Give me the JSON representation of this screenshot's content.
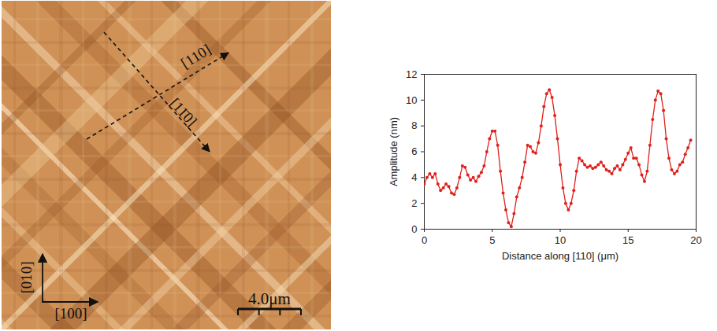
{
  "chart_data": [
    {
      "type": "image",
      "annotations": [
        "[110]",
        "[11̄0]",
        "[010]",
        "[100]"
      ],
      "scale_bar": "4.0μm"
    },
    {
      "type": "line",
      "x_label": "Distance along [110] (μm)",
      "y_label": "Amplitude (nm)",
      "x": [
        0,
        0.2,
        0.4,
        0.6,
        0.8,
        1.0,
        1.2,
        1.4,
        1.6,
        1.8,
        2.0,
        2.2,
        2.4,
        2.6,
        2.8,
        3.0,
        3.2,
        3.4,
        3.6,
        3.8,
        4.0,
        4.2,
        4.4,
        4.6,
        4.8,
        5.0,
        5.2,
        5.4,
        5.6,
        5.8,
        6.0,
        6.2,
        6.4,
        6.6,
        6.8,
        7.0,
        7.2,
        7.4,
        7.6,
        7.8,
        8.0,
        8.2,
        8.4,
        8.6,
        8.8,
        9.0,
        9.2,
        9.4,
        9.6,
        9.8,
        10.0,
        10.2,
        10.4,
        10.6,
        10.8,
        11.0,
        11.2,
        11.4,
        11.6,
        11.8,
        12.0,
        12.2,
        12.4,
        12.6,
        12.8,
        13.0,
        13.2,
        13.4,
        13.6,
        13.8,
        14.0,
        14.2,
        14.4,
        14.6,
        14.8,
        15.0,
        15.2,
        15.4,
        15.6,
        15.8,
        16.0,
        16.2,
        16.4,
        16.6,
        16.8,
        17.0,
        17.2,
        17.4,
        17.6,
        17.8,
        18.0,
        18.2,
        18.4,
        18.6,
        18.8,
        19.0,
        19.2,
        19.4,
        19.6
      ],
      "values": [
        3.5,
        4.0,
        4.3,
        4.0,
        4.3,
        3.5,
        3.0,
        3.2,
        3.5,
        3.3,
        2.8,
        2.7,
        3.2,
        4.0,
        4.9,
        4.8,
        4.2,
        3.8,
        4.0,
        3.7,
        4.1,
        4.4,
        4.9,
        6.0,
        7.0,
        7.6,
        7.6,
        6.5,
        4.5,
        2.8,
        1.5,
        0.5,
        0.2,
        1.2,
        2.5,
        3.2,
        4.0,
        5.2,
        6.5,
        6.4,
        6.0,
        5.9,
        6.7,
        8.0,
        9.5,
        10.5,
        10.8,
        10.2,
        8.8,
        7.0,
        5.0,
        3.2,
        2.0,
        1.5,
        2.0,
        3.0,
        4.5,
        5.5,
        5.3,
        5.0,
        4.8,
        4.9,
        4.7,
        4.8,
        5.0,
        5.2,
        4.9,
        4.6,
        4.5,
        4.3,
        4.7,
        4.9,
        4.6,
        5.0,
        5.4,
        5.9,
        6.3,
        5.5,
        5.5,
        5.0,
        4.2,
        3.7,
        4.5,
        6.5,
        8.5,
        10.0,
        10.7,
        10.5,
        9.2,
        7.0,
        5.5,
        4.6,
        4.3,
        4.5,
        5.0,
        5.2,
        5.8,
        6.3,
        6.9
      ],
      "color": "#e0201b",
      "marker": "circle",
      "line_style": "solid",
      "xlim": [
        0,
        20
      ],
      "ylim": [
        0,
        12
      ],
      "xticks": [
        0,
        5,
        10,
        15,
        20
      ],
      "yticks": [
        0,
        2,
        4,
        6,
        8,
        10,
        12
      ]
    }
  ]
}
